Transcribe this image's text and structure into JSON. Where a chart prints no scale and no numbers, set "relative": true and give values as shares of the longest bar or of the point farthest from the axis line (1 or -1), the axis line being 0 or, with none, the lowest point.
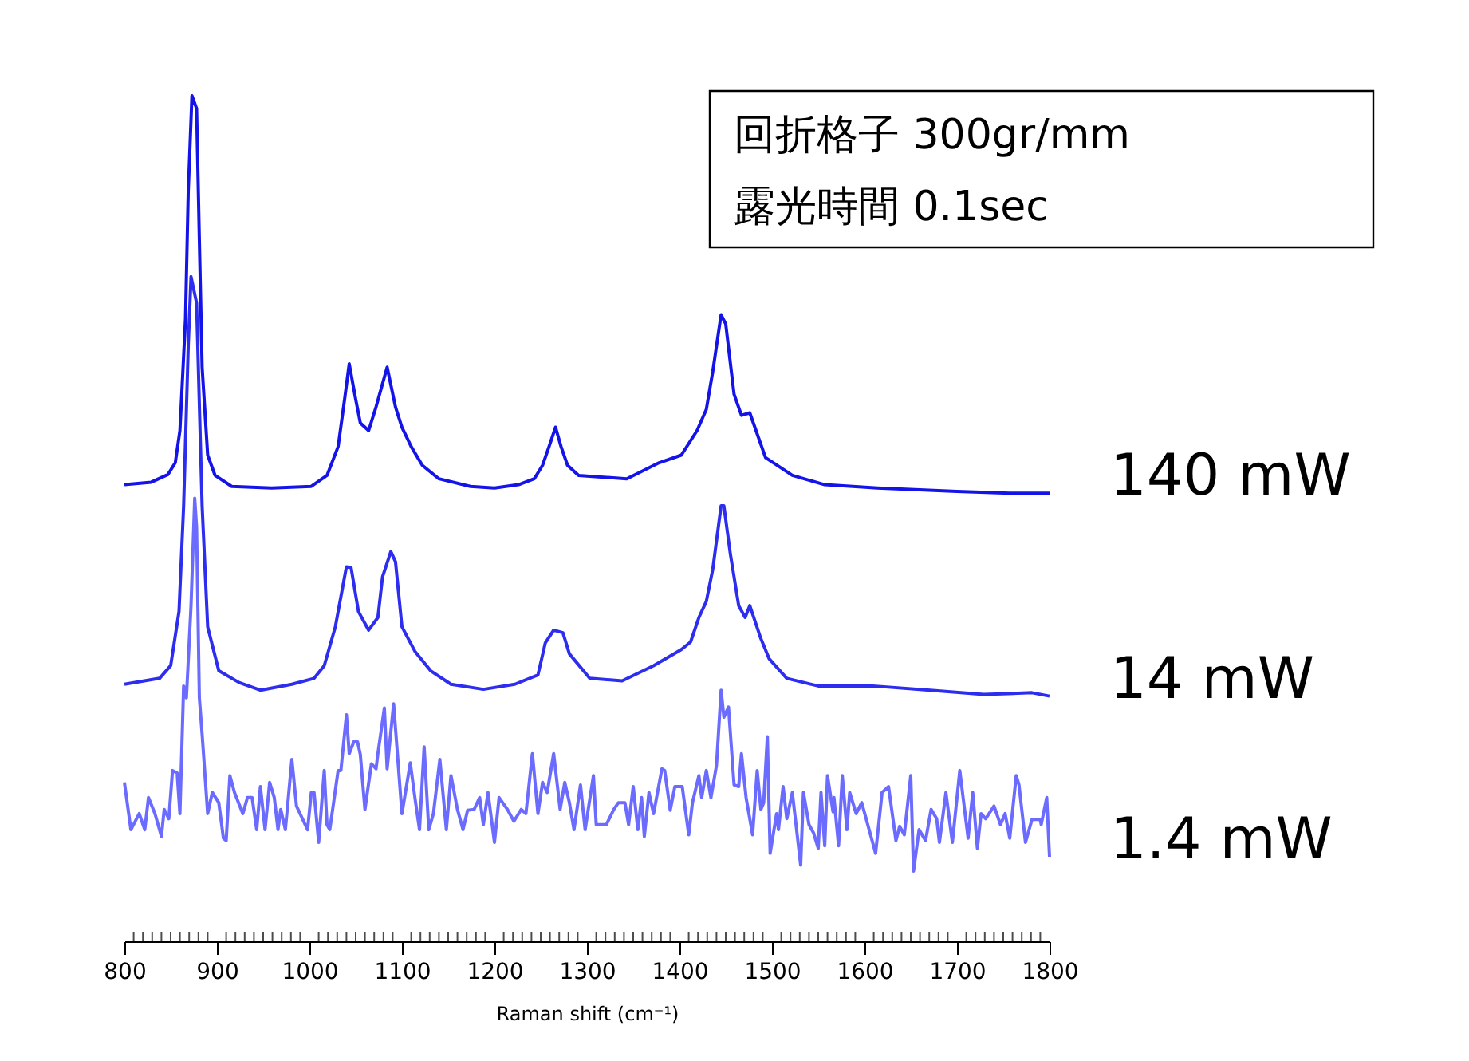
{
  "chart_data": {
    "type": "line",
    "relative": true,
    "xlabel": "Raman shift (cm⁻¹)",
    "xlim": [
      800,
      1800
    ],
    "xticks": [
      800,
      {
        "value": 810,
        "label": null
      },
      {
        "value": 820,
        "label": null
      },
      {
        "value": 830,
        "label": null
      },
      {
        "value": 840,
        "label": null
      },
      {
        "value": 850,
        "label": null
      },
      {
        "value": 860,
        "label": null
      },
      {
        "value": 870,
        "label": null
      },
      {
        "value": 880,
        "label": null
      },
      {
        "value": 890,
        "label": null
      },
      900,
      {
        "value": 910,
        "label": null
      },
      {
        "value": 920,
        "label": null
      },
      {
        "value": 930,
        "label": null
      },
      {
        "value": 940,
        "label": null
      },
      {
        "value": 950,
        "label": null
      },
      {
        "value": 960,
        "label": null
      },
      {
        "value": 970,
        "label": null
      },
      {
        "value": 980,
        "label": null
      },
      {
        "value": 990,
        "label": null
      },
      1000,
      {
        "value": 1010,
        "label": null
      },
      {
        "value": 1020,
        "label": null
      },
      {
        "value": 1030,
        "label": null
      },
      {
        "value": 1040,
        "label": null
      },
      {
        "value": 1050,
        "label": null
      },
      {
        "value": 1060,
        "label": null
      },
      {
        "value": 1070,
        "label": null
      },
      {
        "value": 1080,
        "label": null
      },
      {
        "value": 1090,
        "label": null
      },
      1100,
      {
        "value": 1110,
        "label": null
      },
      {
        "value": 1120,
        "label": null
      },
      {
        "value": 1130,
        "label": null
      },
      {
        "value": 1140,
        "label": null
      },
      {
        "value": 1150,
        "label": null
      },
      {
        "value": 1160,
        "label": null
      },
      {
        "value": 1170,
        "label": null
      },
      {
        "value": 1180,
        "label": null
      },
      {
        "value": 1190,
        "label": null
      },
      1200,
      {
        "value": 1210,
        "label": null
      },
      {
        "value": 1220,
        "label": null
      },
      {
        "value": 1230,
        "label": null
      },
      {
        "value": 1240,
        "label": null
      },
      {
        "value": 1250,
        "label": null
      },
      {
        "value": 1260,
        "label": null
      },
      {
        "value": 1270,
        "label": null
      },
      {
        "value": 1280,
        "label": null
      },
      {
        "value": 1290,
        "label": null
      },
      1300,
      {
        "value": 1310,
        "label": null
      },
      {
        "value": 1320,
        "label": null
      },
      {
        "value": 1330,
        "label": null
      },
      {
        "value": 1340,
        "label": null
      },
      {
        "value": 1350,
        "label": null
      },
      {
        "value": 1360,
        "label": null
      },
      {
        "value": 1370,
        "label": null
      },
      {
        "value": 1380,
        "label": null
      },
      {
        "value": 1390,
        "label": null
      },
      1400,
      {
        "value": 1410,
        "label": null
      },
      {
        "value": 1420,
        "label": null
      },
      {
        "value": 1430,
        "label": null
      },
      {
        "value": 1440,
        "label": null
      },
      {
        "value": 1450,
        "label": null
      },
      {
        "value": 1460,
        "label": null
      },
      {
        "value": 1470,
        "label": null
      },
      {
        "value": 1480,
        "label": null
      },
      {
        "value": 1490,
        "label": null
      },
      1500,
      {
        "value": 1510,
        "label": null
      },
      {
        "value": 1520,
        "label": null
      },
      {
        "value": 1530,
        "label": null
      },
      {
        "value": 1540,
        "label": null
      },
      {
        "value": 1550,
        "label": null
      },
      {
        "value": 1560,
        "label": null
      },
      {
        "value": 1570,
        "label": null
      },
      {
        "value": 1580,
        "label": null
      },
      {
        "value": 1590,
        "label": null
      },
      1600,
      {
        "value": 1610,
        "label": null
      },
      {
        "value": 1620,
        "label": null
      },
      {
        "value": 1630,
        "label": null
      },
      {
        "value": 1640,
        "label": null
      },
      {
        "value": 1650,
        "label": null
      },
      {
        "value": 1660,
        "label": null
      },
      {
        "value": 1670,
        "label": null
      },
      {
        "value": 1680,
        "label": null
      },
      {
        "value": 1690,
        "label": null
      },
      1700,
      {
        "value": 1710,
        "label": null
      },
      {
        "value": 1720,
        "label": null
      },
      {
        "value": 1730,
        "label": null
      },
      {
        "value": 1740,
        "label": null
      },
      {
        "value": 1750,
        "label": null
      },
      {
        "value": 1760,
        "label": null
      },
      {
        "value": 1770,
        "label": null
      },
      {
        "value": 1780,
        "label": null
      },
      {
        "value": 1790,
        "label": null
      },
      1800
    ],
    "annotations": [
      "回折格子 300gr/mm",
      "露光時間 0.1sec"
    ],
    "series": [
      {
        "name": "140 mW",
        "color": "#1414e8",
        "x": [
          800,
          829,
          847,
          855,
          860,
          866,
          869,
          873,
          878,
          881,
          884,
          890,
          898,
          916,
          959,
          1002,
          1019,
          1031,
          1038,
          1043,
          1050,
          1055,
          1064,
          1072,
          1084,
          1093,
          1100,
          1110,
          1122,
          1140,
          1174,
          1200,
          1226,
          1243,
          1252,
          1259,
          1266,
          1272,
          1279,
          1291,
          1343,
          1378,
          1402,
          1419,
          1429,
          1436,
          1445,
          1450,
          1459,
          1467,
          1476,
          1493,
          1522,
          1557,
          1614,
          1700,
          1757,
          1800
        ],
        "values": [
          0.54,
          0.543,
          0.552,
          0.566,
          0.604,
          0.736,
          0.887,
          1.0,
          0.985,
          0.83,
          0.679,
          0.575,
          0.551,
          0.538,
          0.536,
          0.538,
          0.551,
          0.585,
          0.641,
          0.683,
          0.641,
          0.613,
          0.604,
          0.632,
          0.679,
          0.632,
          0.608,
          0.585,
          0.563,
          0.547,
          0.538,
          0.536,
          0.54,
          0.547,
          0.563,
          0.585,
          0.608,
          0.585,
          0.563,
          0.551,
          0.547,
          0.566,
          0.575,
          0.604,
          0.629,
          0.674,
          0.741,
          0.73,
          0.647,
          0.622,
          0.625,
          0.572,
          0.551,
          0.54,
          0.536,
          0.532,
          0.53,
          0.53
        ]
      },
      {
        "name": "14 mW",
        "color": "#2d2df0",
        "x": [
          800,
          838,
          850,
          859,
          864,
          869,
          872,
          878,
          884,
          890,
          902,
          924,
          947,
          981,
          1005,
          1016,
          1028,
          1040,
          1045,
          1053,
          1064,
          1074,
          1079,
          1088,
          1093,
          1100,
          1114,
          1131,
          1153,
          1188,
          1222,
          1247,
          1255,
          1264,
          1274,
          1281,
          1303,
          1338,
          1372,
          1402,
          1412,
          1421,
          1429,
          1436,
          1445,
          1448,
          1455,
          1464,
          1471,
          1476,
          1488,
          1497,
          1516,
          1550,
          1609,
          1671,
          1729,
          1781,
          1800
        ],
        "values": [
          0.304,
          0.311,
          0.326,
          0.39,
          0.515,
          0.704,
          0.786,
          0.755,
          0.515,
          0.372,
          0.32,
          0.306,
          0.297,
          0.304,
          0.311,
          0.326,
          0.372,
          0.443,
          0.442,
          0.39,
          0.368,
          0.383,
          0.431,
          0.461,
          0.449,
          0.372,
          0.343,
          0.32,
          0.304,
          0.298,
          0.304,
          0.315,
          0.353,
          0.368,
          0.365,
          0.34,
          0.311,
          0.308,
          0.326,
          0.345,
          0.354,
          0.383,
          0.402,
          0.44,
          0.515,
          0.515,
          0.458,
          0.397,
          0.383,
          0.397,
          0.358,
          0.334,
          0.311,
          0.302,
          0.302,
          0.297,
          0.292,
          0.294,
          0.29
        ]
      },
      {
        "name": "1.4 mW",
        "color": "#6b6bff",
        "x": [
          800,
          807,
          816,
          822,
          826,
          833,
          840,
          843,
          848,
          852,
          857,
          860,
          864,
          867,
          872,
          876,
          878,
          881,
          884,
          890,
          895,
          902,
          907,
          910,
          914,
          919,
          928,
          933,
          938,
          943,
          947,
          952,
          957,
          962,
          966,
          969,
          974,
          981,
          986,
          998,
          1002,
          1005,
          1010,
          1016,
          1019,
          1022,
          1031,
          1034,
          1040,
          1043,
          1048,
          1052,
          1055,
          1060,
          1067,
          1072,
          1074,
          1081,
          1084,
          1091,
          1100,
          1109,
          1114,
          1119,
          1124,
          1129,
          1134,
          1141,
          1148,
          1153,
          1160,
          1166,
          1171,
          1178,
          1184,
          1188,
          1193,
          1200,
          1205,
          1214,
          1221,
          1229,
          1234,
          1241,
          1247,
          1252,
          1257,
          1264,
          1271,
          1276,
          1281,
          1286,
          1293,
          1298,
          1307,
          1310,
          1321,
          1329,
          1334,
          1341,
          1345,
          1350,
          1355,
          1359,
          1362,
          1367,
          1372,
          1381,
          1384,
          1390,
          1395,
          1403,
          1410,
          1414,
          1421,
          1424,
          1429,
          1434,
          1440,
          1445,
          1448,
          1453,
          1459,
          1464,
          1467,
          1472,
          1479,
          1484,
          1488,
          1491,
          1495,
          1498,
          1505,
          1507,
          1512,
          1516,
          1522,
          1531,
          1534,
          1540,
          1545,
          1550,
          1553,
          1557,
          1560,
          1566,
          1567,
          1572,
          1576,
          1581,
          1584,
          1591,
          1597,
          1605,
          1612,
          1619,
          1626,
          1634,
          1638,
          1643,
          1650,
          1653,
          1659,
          1666,
          1672,
          1678,
          1681,
          1688,
          1695,
          1703,
          1712,
          1717,
          1722,
          1726,
          1731,
          1740,
          1747,
          1752,
          1757,
          1764,
          1767,
          1774,
          1781,
          1790,
          1791,
          1797,
          1800
        ],
        "values": [
          0.188,
          0.132,
          0.151,
          0.132,
          0.17,
          0.151,
          0.124,
          0.156,
          0.145,
          0.202,
          0.199,
          0.151,
          0.302,
          0.288,
          0.397,
          0.524,
          0.49,
          0.288,
          0.245,
          0.151,
          0.176,
          0.164,
          0.122,
          0.119,
          0.196,
          0.176,
          0.151,
          0.17,
          0.17,
          0.132,
          0.183,
          0.132,
          0.188,
          0.17,
          0.132,
          0.156,
          0.132,
          0.215,
          0.16,
          0.132,
          0.176,
          0.176,
          0.117,
          0.202,
          0.138,
          0.132,
          0.202,
          0.202,
          0.268,
          0.222,
          0.236,
          0.236,
          0.221,
          0.156,
          0.21,
          0.204,
          0.222,
          0.276,
          0.204,
          0.281,
          0.151,
          0.211,
          0.17,
          0.132,
          0.23,
          0.132,
          0.151,
          0.215,
          0.132,
          0.196,
          0.156,
          0.132,
          0.155,
          0.156,
          0.17,
          0.138,
          0.176,
          0.117,
          0.17,
          0.156,
          0.142,
          0.156,
          0.151,
          0.222,
          0.151,
          0.188,
          0.176,
          0.222,
          0.156,
          0.188,
          0.164,
          0.132,
          0.185,
          0.132,
          0.196,
          0.138,
          0.138,
          0.156,
          0.164,
          0.164,
          0.138,
          0.183,
          0.132,
          0.17,
          0.124,
          0.176,
          0.151,
          0.204,
          0.202,
          0.155,
          0.183,
          0.183,
          0.126,
          0.164,
          0.196,
          0.17,
          0.202,
          0.17,
          0.208,
          0.297,
          0.265,
          0.277,
          0.185,
          0.183,
          0.222,
          0.17,
          0.126,
          0.202,
          0.156,
          0.164,
          0.242,
          0.104,
          0.151,
          0.132,
          0.183,
          0.145,
          0.176,
          0.09,
          0.176,
          0.138,
          0.128,
          0.11,
          0.176,
          0.113,
          0.196,
          0.153,
          0.17,
          0.113,
          0.196,
          0.132,
          0.176,
          0.151,
          0.164,
          0.132,
          0.104,
          0.176,
          0.183,
          0.119,
          0.136,
          0.126,
          0.196,
          0.083,
          0.132,
          0.119,
          0.156,
          0.145,
          0.117,
          0.176,
          0.117,
          0.202,
          0.122,
          0.176,
          0.11,
          0.151,
          0.145,
          0.16,
          0.138,
          0.151,
          0.122,
          0.196,
          0.185,
          0.117,
          0.144,
          0.144,
          0.138,
          0.17,
          0.1
        ]
      }
    ]
  }
}
